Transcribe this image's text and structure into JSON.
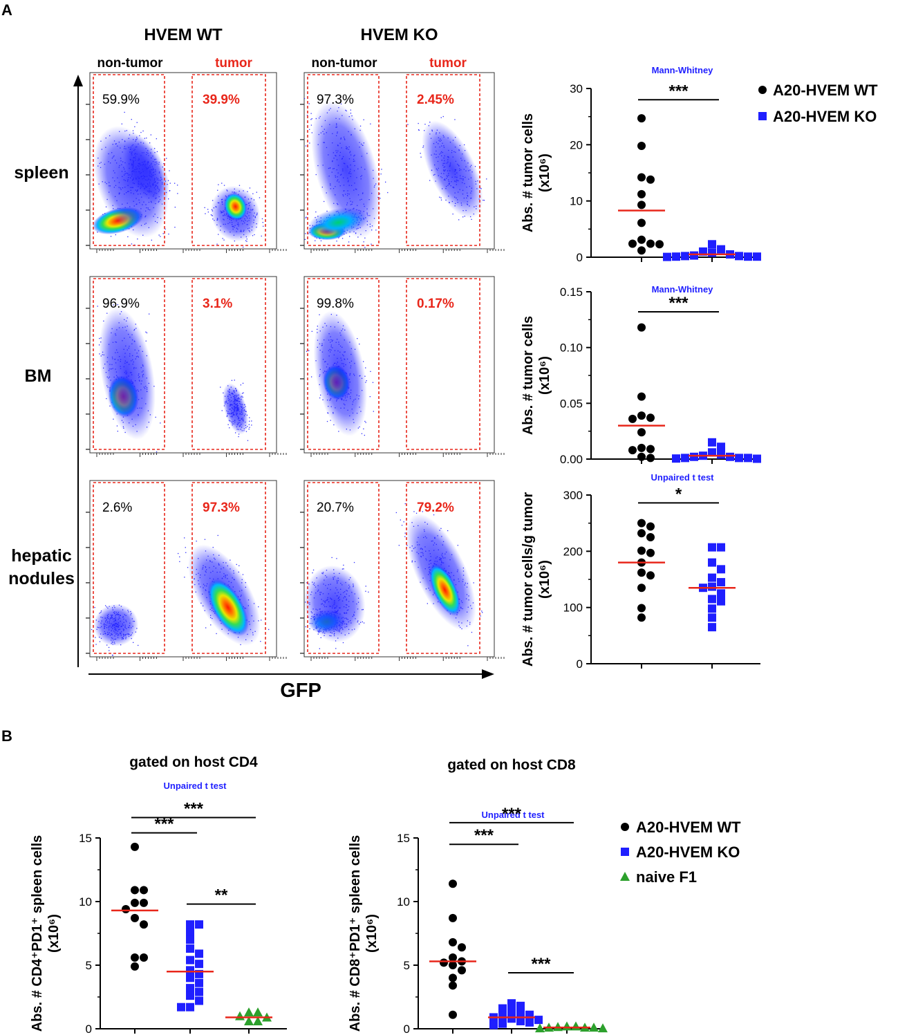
{
  "panel_labels": {
    "a": "A",
    "b": "B"
  },
  "colors": {
    "wt": "#000000",
    "ko": "#1f1fff",
    "naive": "#2ca02c",
    "red": "#e8261a",
    "blue_text": "#1f1fff"
  },
  "flow": {
    "col_titles": [
      "HVEM WT",
      "HVEM KO"
    ],
    "gate_labels": {
      "non_tumor": "non-tumor",
      "tumor": "tumor"
    },
    "row_labels": [
      [
        "spleen"
      ],
      [
        "BM"
      ],
      [
        "hepatic",
        "nodules"
      ]
    ],
    "x_axis_label": "GFP",
    "percentages": [
      [
        [
          "59.9%",
          "39.9%"
        ],
        [
          "97.3%",
          "2.45%"
        ]
      ],
      [
        [
          "96.9%",
          "3.1%"
        ],
        [
          "99.8%",
          "0.17%"
        ]
      ],
      [
        [
          "2.6%",
          "97.3%"
        ],
        [
          "20.7%",
          "79.2%"
        ]
      ]
    ]
  },
  "legend_a": [
    {
      "label": "A20-HVEM WT",
      "marker": "circle-icon"
    },
    {
      "label": "A20-HVEM KO",
      "marker": "square-icon"
    }
  ],
  "legend_b": [
    {
      "label": "A20-HVEM WT",
      "marker": "circle-icon"
    },
    {
      "label": "A20-HVEM KO",
      "marker": "square-icon"
    },
    {
      "label": "naive F1",
      "marker": "triangle-icon"
    }
  ],
  "chart_data": [
    {
      "type": "scatter",
      "id": "spleen",
      "ylabel_lines": [
        "Abs. # tumor cells",
        "(x10⁶)"
      ],
      "ylim": [
        0,
        30
      ],
      "yticks": [
        0,
        10,
        20,
        30
      ],
      "test_label": "Mann-Whitney",
      "series": [
        {
          "name": "A20-HVEM WT",
          "marker": "circle",
          "values": [
            24.7,
            19.8,
            14.2,
            13.8,
            11.2,
            9.3,
            6.1,
            3.1,
            2.4,
            2.4,
            2.3,
            1.2
          ],
          "mean": 8.3
        },
        {
          "name": "A20-HVEM KO",
          "marker": "square",
          "values": [
            2.3,
            1.4,
            1.0,
            0.8,
            0.5,
            0.3,
            0.2,
            0.2,
            0.1,
            0.1,
            0.1,
            0.05
          ],
          "mean": 0.5
        }
      ],
      "comparisons": [
        {
          "from": 0,
          "to": 1,
          "label": "***",
          "y": 28
        }
      ]
    },
    {
      "type": "scatter",
      "id": "bm",
      "ylabel_lines": [
        "Abs. # tumor cells",
        "(x10⁶)"
      ],
      "ylim": [
        0,
        0.15
      ],
      "yticks": [
        0.0,
        0.05,
        0.1,
        0.15
      ],
      "test_label": "Mann-Whitney",
      "series": [
        {
          "name": "A20-HVEM WT",
          "marker": "circle",
          "values": [
            0.118,
            0.056,
            0.039,
            0.037,
            0.036,
            0.024,
            0.01,
            0.009,
            0.008,
            0.002,
            0.001
          ],
          "mean": 0.03
        },
        {
          "name": "A20-HVEM KO",
          "marker": "square",
          "values": [
            0.015,
            0.011,
            0.006,
            0.004,
            0.003,
            0.002,
            0.002,
            0.001,
            0.001,
            0.001,
            0.0005,
            0.0003
          ],
          "mean": 0.003
        }
      ],
      "comparisons": [
        {
          "from": 0,
          "to": 1,
          "label": "***",
          "y": 0.132
        }
      ]
    },
    {
      "type": "scatter",
      "id": "hepatic",
      "ylabel_lines": [
        "Abs. # tumor cells/g tumor",
        "(x10⁶)"
      ],
      "ylim": [
        0,
        300
      ],
      "yticks": [
        0,
        100,
        200,
        300
      ],
      "test_label": "Unpaired t test",
      "series": [
        {
          "name": "A20-HVEM WT",
          "marker": "circle",
          "values": [
            250,
            244,
            232,
            225,
            201,
            197,
            180,
            162,
            157,
            135,
            99,
            82
          ],
          "mean": 180
        },
        {
          "name": "A20-HVEM KO",
          "marker": "square",
          "values": [
            207,
            207,
            180,
            168,
            153,
            145,
            137,
            135,
            125,
            115,
            111,
            98,
            82,
            65
          ],
          "mean": 135
        }
      ],
      "comparisons": [
        {
          "from": 0,
          "to": 1,
          "label": "*",
          "y": 286
        }
      ]
    },
    {
      "type": "scatter",
      "id": "cd4",
      "title": "gated on host CD4",
      "ylabel_lines": [
        "Abs. # CD4⁺PD1⁺ spleen cells",
        "(x10⁶)"
      ],
      "ylim": [
        0,
        15
      ],
      "yticks": [
        0,
        5,
        10,
        15
      ],
      "test_label": "Unpaired t test",
      "series": [
        {
          "name": "A20-HVEM WT",
          "marker": "circle",
          "values": [
            14.3,
            10.9,
            10.9,
            9.9,
            9.9,
            9.4,
            8.7,
            8.2,
            5.6,
            5.6,
            4.9
          ],
          "mean": 9.3
        },
        {
          "name": "A20-HVEM KO",
          "marker": "square",
          "values": [
            8.2,
            8.2,
            7.6,
            7.0,
            6.3,
            5.9,
            5.4,
            5.1,
            4.6,
            4.3,
            4.0,
            3.6,
            3.2,
            2.9,
            2.6,
            2.2,
            1.7,
            1.7
          ],
          "mean": 4.5
        },
        {
          "name": "naive F1",
          "marker": "triangle",
          "values": [
            1.3,
            1.3,
            1.0,
            0.9,
            0.6,
            0.6
          ],
          "mean": 0.9
        }
      ],
      "comparisons": [
        {
          "from": 0,
          "to": 2,
          "label": "***",
          "y": 16.6
        },
        {
          "from": 0,
          "to": 1,
          "label": "***",
          "y": 15.4
        },
        {
          "from": 1,
          "to": 2,
          "label": "**",
          "y": 9.8
        }
      ]
    },
    {
      "type": "scatter",
      "id": "cd8",
      "title": "gated on host CD8",
      "ylabel_lines": [
        "Abs. # CD8⁺PD1⁺ spleen cells",
        "(x10⁶)"
      ],
      "ylim": [
        0,
        15
      ],
      "yticks": [
        0,
        5,
        10,
        15
      ],
      "test_label": "Unpaired t test",
      "series": [
        {
          "name": "A20-HVEM WT",
          "marker": "circle",
          "values": [
            11.4,
            8.7,
            6.8,
            6.4,
            5.6,
            5.3,
            5.2,
            5.0,
            4.6,
            4.0,
            3.4,
            1.1
          ],
          "mean": 5.3
        },
        {
          "name": "A20-HVEM KO",
          "marker": "square",
          "values": [
            2.0,
            1.8,
            1.6,
            1.4,
            1.2,
            1.1,
            1.0,
            0.9,
            0.8,
            0.7,
            0.6,
            0.5,
            0.4,
            0.3
          ],
          "mean": 0.9
        },
        {
          "name": "naive F1",
          "marker": "triangle",
          "values": [
            0.2,
            0.2,
            0.15,
            0.1,
            0.1,
            0.1,
            0.05,
            0.05
          ],
          "mean": 0.1
        }
      ],
      "comparisons": [
        {
          "from": 0,
          "to": 2,
          "label": "***",
          "y": 16.2
        },
        {
          "from": 0,
          "to": 1,
          "label": "***",
          "y": 14.5
        },
        {
          "from": 1,
          "to": 2,
          "label": "***",
          "y": 4.4
        }
      ]
    }
  ]
}
